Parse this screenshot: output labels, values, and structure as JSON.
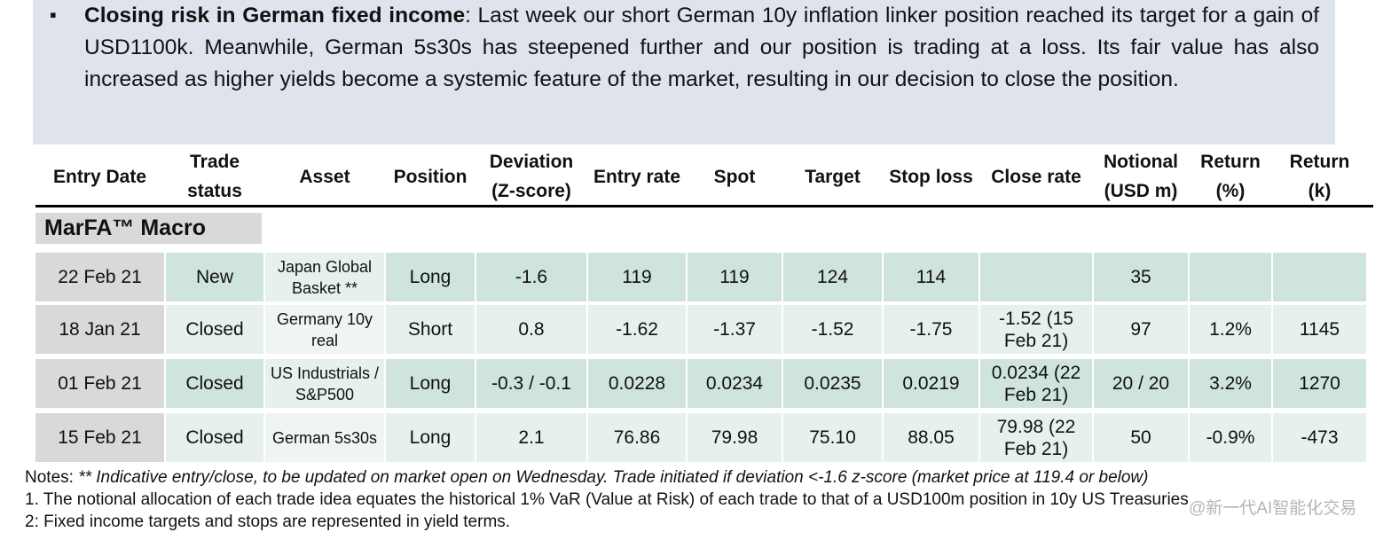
{
  "bullet": {
    "title": "Closing risk in German fixed income",
    "text": ": Last week our short German 10y inflation linker position reached its target for a gain of USD1100k. Meanwhile, German 5s30s has steepened further and our position is trading at a loss. Its fair value has also increased as higher yields become a systemic feature of the market, resulting in our decision to close the position."
  },
  "table": {
    "headers": [
      "Entry Date",
      "Trade status",
      "Asset",
      "Position",
      "Deviation (Z-score)",
      "Entry rate",
      "Spot",
      "Target",
      "Stop loss",
      "Close rate",
      "Notional (USD m)",
      "Return (%)",
      "Return (k)"
    ],
    "section": "MarFA™ Macro",
    "rows": [
      [
        "22 Feb 21",
        "New",
        "Japan Global Basket **",
        "Long",
        "-1.6",
        "119",
        "119",
        "124",
        "114",
        null,
        "35",
        null,
        null
      ],
      [
        "18 Jan 21",
        "Closed",
        "Germany 10y real",
        "Short",
        "0.8",
        "-1.62",
        "-1.37",
        "-1.52",
        "-1.75",
        "-1.52 (15 Feb 21)",
        "97",
        "1.2%",
        "1145"
      ],
      [
        "01 Feb 21",
        "Closed",
        "US Industrials / S&P500",
        "Long",
        "-0.3 / -0.1",
        "0.0228",
        "0.0234",
        "0.0235",
        "0.0219",
        "0.0234 (22 Feb 21)",
        "20 / 20",
        "3.2%",
        "1270"
      ],
      [
        "15 Feb 21",
        "Closed",
        "German 5s30s",
        "Long",
        "2.1",
        "76.86",
        "79.98",
        "75.10",
        "88.05",
        "79.98 (22 Feb 21)",
        "50",
        "-0.9%",
        "-473"
      ]
    ]
  },
  "notes": {
    "prefix": "Notes:",
    "text": "** Indicative entry/close, to be updated on market open on Wednesday. Trade initiated if deviation <-1.6 z-score (market price at 119.4 or below)",
    "lines": [
      "1. The notional allocation of each trade idea equates the historical 1% VaR (Value at Risk)  of each trade to that of a USD100m position in 10y US Treasuries",
      "2: Fixed income targets and stops are represented in yield terms."
    ]
  },
  "watermark": "@新一代AI智能化交易"
}
